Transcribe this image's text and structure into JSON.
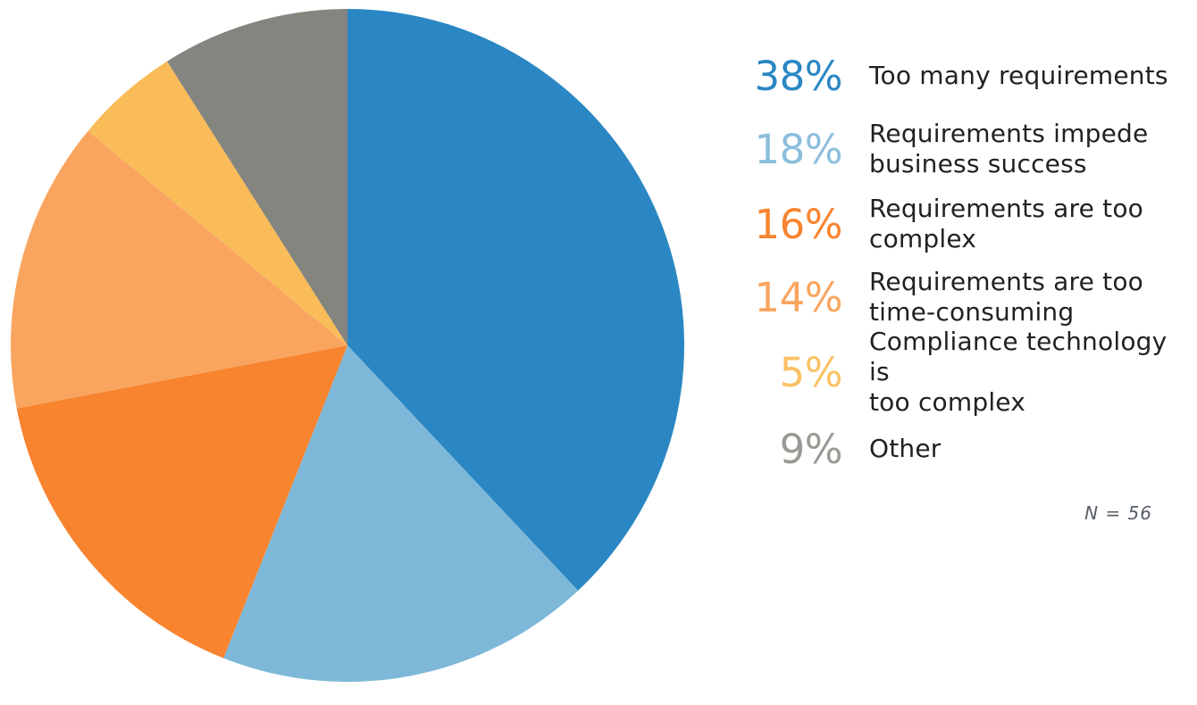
{
  "chart_data": {
    "type": "pie",
    "title": "",
    "start_angle_deg": 0,
    "direction": "clockwise",
    "legend_position": "right",
    "background": "#ffffff",
    "label_color": "#212121",
    "note": "N = 56",
    "note_color": "#565d64",
    "categories": [
      "Too many requirements",
      "Requirements impede business success",
      "Requirements are too complex",
      "Requirements are too time-consuming",
      "Compliance technology is too complex",
      "Other"
    ],
    "series": [
      {
        "label": "Too many requirements",
        "label_lines": "Too many requirements",
        "value": 38,
        "pct": "38%",
        "color": "#2b87c3",
        "legend_color": "#2b87c3"
      },
      {
        "label": "Requirements impede business success",
        "label_lines": "Requirements impede\nbusiness success",
        "value": 18,
        "pct": "18%",
        "color": "#7eb8d8",
        "legend_color": "#8bbedd"
      },
      {
        "label": "Requirements are too complex",
        "label_lines": "Requirements are too\ncomplex",
        "value": 16,
        "pct": "16%",
        "color": "#f8842f",
        "legend_color": "#f8842f"
      },
      {
        "label": "Requirements are too time-consuming",
        "label_lines": "Requirements are too\ntime-consuming",
        "value": 14,
        "pct": "14%",
        "color": "#f9a55f",
        "legend_color": "#f9a55f"
      },
      {
        "label": "Compliance technology is too complex",
        "label_lines": "Compliance technology is\ntoo complex",
        "value": 5,
        "pct": "5%",
        "color": "#f9bc59",
        "legend_color": "#fac163"
      },
      {
        "label": "Other",
        "label_lines": "Other",
        "value": 9,
        "pct": "9%",
        "color": "#85857f",
        "legend_color": "#9a9993"
      }
    ]
  }
}
